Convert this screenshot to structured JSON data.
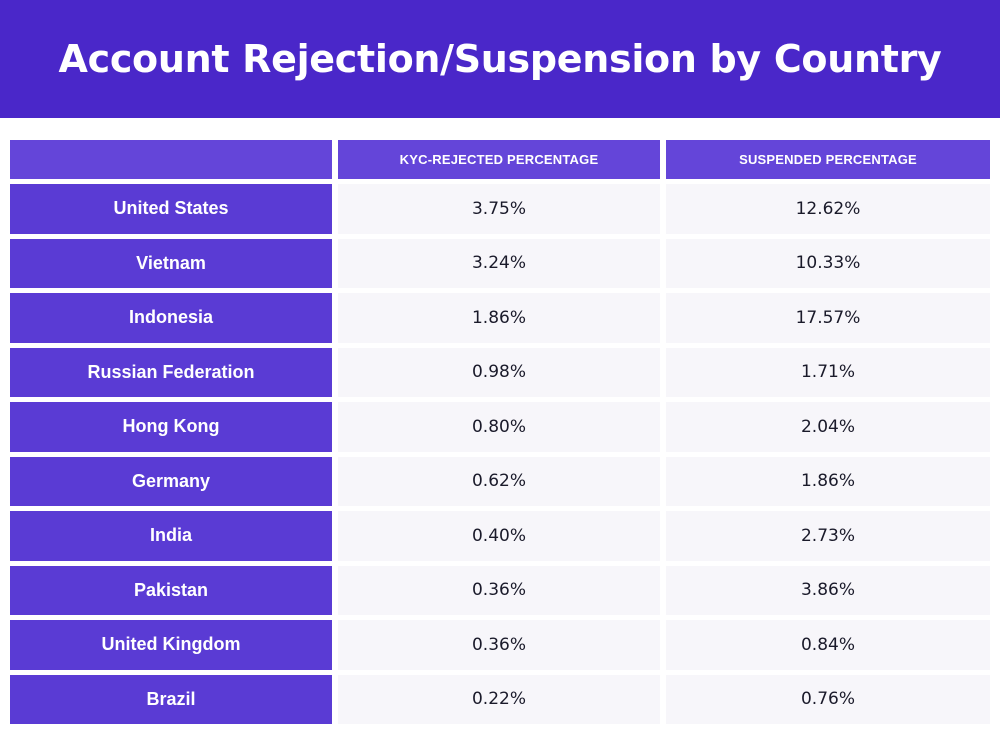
{
  "title": "Account Rejection/Suspension by Country",
  "chart_data": {
    "type": "table",
    "title": "Account Rejection/Suspension by Country",
    "columns": [
      "",
      "KYC-REJECTED PERCENTAGE",
      "SUSPENDED PERCENTAGE"
    ],
    "rows": [
      {
        "country": "United States",
        "kyc_rejected": "3.75%",
        "suspended": "12.62%"
      },
      {
        "country": "Vietnam",
        "kyc_rejected": "3.24%",
        "suspended": "10.33%"
      },
      {
        "country": "Indonesia",
        "kyc_rejected": "1.86%",
        "suspended": "17.57%"
      },
      {
        "country": "Russian Federation",
        "kyc_rejected": "0.98%",
        "suspended": "1.71%"
      },
      {
        "country": "Hong Kong",
        "kyc_rejected": "0.80%",
        "suspended": "2.04%"
      },
      {
        "country": "Germany",
        "kyc_rejected": "0.62%",
        "suspended": "1.86%"
      },
      {
        "country": "India",
        "kyc_rejected": "0.40%",
        "suspended": "2.73%"
      },
      {
        "country": "Pakistan",
        "kyc_rejected": "0.36%",
        "suspended": "3.86%"
      },
      {
        "country": "United Kingdom",
        "kyc_rejected": "0.36%",
        "suspended": "0.84%"
      },
      {
        "country": "Brazil",
        "kyc_rejected": "0.22%",
        "suspended": "0.76%"
      }
    ]
  },
  "colors": {
    "title_background": "#4a27c9",
    "header_background": "#6445d9",
    "country_background": "#5a3bd4",
    "value_background": "#f7f6fa"
  }
}
